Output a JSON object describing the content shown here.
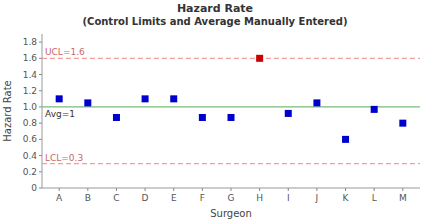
{
  "chart_data": {
    "type": "scatter",
    "title": "Hazard Rate",
    "subtitle": "(Control Limits and Average Manually Entered)",
    "x_label": "Surgeon",
    "y_label": "Hazard Rate",
    "categories": [
      "A",
      "B",
      "C",
      "D",
      "E",
      "F",
      "G",
      "H",
      "I",
      "J",
      "K",
      "L",
      "M"
    ],
    "values": [
      1.1,
      1.05,
      0.87,
      1.1,
      1.1,
      0.87,
      0.87,
      1.6,
      0.92,
      1.05,
      0.6,
      0.97,
      0.8
    ],
    "colors": [
      "#0000cc",
      "#0000cc",
      "#0000cc",
      "#0000cc",
      "#0000cc",
      "#0000cc",
      "#0000cc",
      "#cc0000",
      "#0000cc",
      "#0000cc",
      "#0000cc",
      "#0000cc",
      "#0000cc"
    ],
    "marker": "square",
    "annotations": [
      {
        "value": 1.6,
        "label": "UCL=1.6",
        "color": "#f0a0a0",
        "label_color": "#cc6666",
        "line_style": "dashed"
      },
      {
        "value": 1.0,
        "label": "Avg=1",
        "color": "#77bb77",
        "label_color": "#333333",
        "line_style": "solid"
      },
      {
        "value": 0.3,
        "label": "LCL=0.3",
        "color": "#f0a0a0",
        "label_color": "#cc6666",
        "line_style": "dashed"
      }
    ],
    "ylim": [
      0,
      1.9
    ],
    "yticks": [
      0,
      0.2,
      0.4,
      0.6,
      0.8,
      {
        "value": 1.0,
        "label": "1.0"
      },
      1.2,
      1.4,
      1.6,
      1.8
    ],
    "grid": false
  }
}
